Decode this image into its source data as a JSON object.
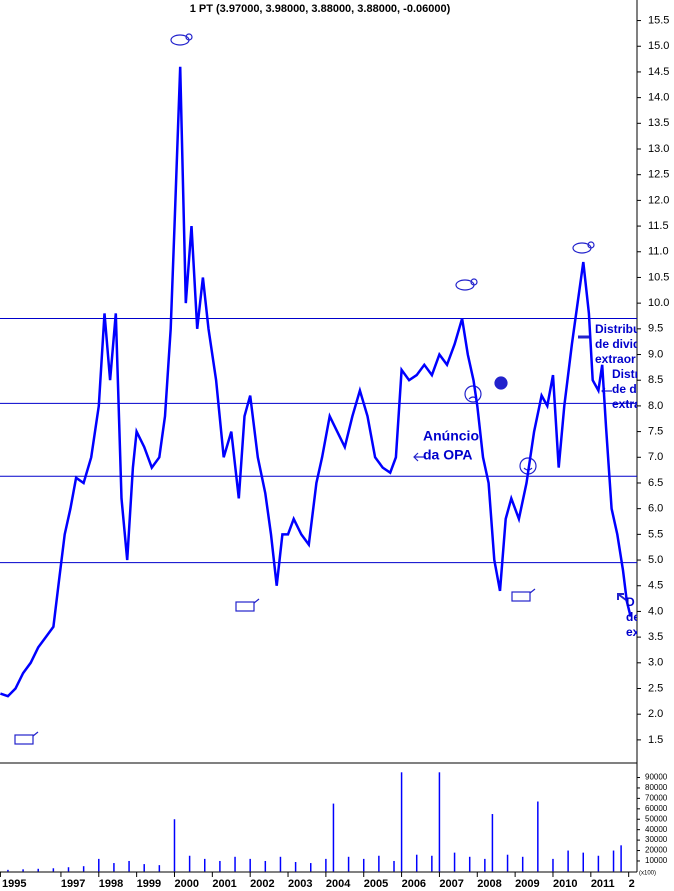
{
  "chart_data": {
    "type": "stock",
    "title": "1 PT (3.97000, 3.98000, 3.88000, 3.88000, -0.06000)",
    "color": "#0000ff",
    "xlim": [
      1995.39,
      2012.22
    ],
    "xticks": [
      {
        "value": 1995.4,
        "label": "1995"
      },
      1997,
      1998,
      1999,
      2000,
      2001,
      2002,
      2003,
      2004,
      2005,
      2006,
      2007,
      2008,
      2009,
      2010,
      2011,
      {
        "value": 2012,
        "label": "2"
      }
    ],
    "ylim": [
      1.05,
      15.9
    ],
    "yticks": [
      1.5,
      {
        "value": 2,
        "label": "2.0"
      },
      2.5,
      {
        "value": 3,
        "label": "3.0"
      },
      3.5,
      {
        "value": 4,
        "label": "4.0"
      },
      4.5,
      {
        "value": 5,
        "label": "5.0"
      },
      5.5,
      {
        "value": 6,
        "label": "6.0"
      },
      6.5,
      {
        "value": 7,
        "label": "7.0"
      },
      7.5,
      {
        "value": 8,
        "label": "8.0"
      },
      8.5,
      {
        "value": 9,
        "label": "9.0"
      },
      9.5,
      {
        "value": 10,
        "label": "10.0"
      },
      10.5,
      {
        "value": 11,
        "label": "11.0"
      },
      11.5,
      {
        "value": 12,
        "label": "12.0"
      },
      12.5,
      {
        "value": 13,
        "label": "13.0"
      },
      13.5,
      {
        "value": 14,
        "label": "14.0"
      },
      14.5,
      {
        "value": 15,
        "label": "15.0"
      },
      15.5
    ],
    "x": [
      1995.4,
      1995.6,
      1995.8,
      1996.0,
      1996.2,
      1996.4,
      1996.6,
      1996.8,
      1996.95,
      1997.1,
      1997.25,
      1997.4,
      1997.6,
      1997.8,
      1998.0,
      1998.15,
      1998.3,
      1998.45,
      1998.6,
      1998.75,
      1998.9,
      1999.0,
      1999.2,
      1999.4,
      1999.6,
      1999.75,
      1999.9,
      2000.0,
      2000.15,
      2000.3,
      2000.45,
      2000.6,
      2000.75,
      2000.9,
      2001.1,
      2001.3,
      2001.5,
      2001.7,
      2001.85,
      2002.0,
      2002.2,
      2002.4,
      2002.55,
      2002.7,
      2002.85,
      2003.0,
      2003.15,
      2003.35,
      2003.55,
      2003.75,
      2003.9,
      2004.1,
      2004.3,
      2004.5,
      2004.7,
      2004.9,
      2005.1,
      2005.3,
      2005.5,
      2005.7,
      2005.85,
      2006.0,
      2006.2,
      2006.4,
      2006.6,
      2006.8,
      2007.0,
      2007.2,
      2007.4,
      2007.6,
      2007.75,
      2007.9,
      2008.0,
      2008.15,
      2008.3,
      2008.45,
      2008.6,
      2008.75,
      2008.9,
      2009.1,
      2009.3,
      2009.5,
      2009.7,
      2009.85,
      2010.0,
      2010.15,
      2010.3,
      2010.5,
      2010.65,
      2010.8,
      2010.95,
      2011.05,
      2011.2,
      2011.3,
      2011.4,
      2011.55,
      2011.7,
      2011.85,
      2011.95,
      2012.05
    ],
    "values": [
      2.4,
      2.35,
      2.5,
      2.8,
      3.0,
      3.3,
      3.5,
      3.7,
      4.6,
      5.5,
      6.0,
      6.6,
      6.5,
      7.0,
      8.0,
      9.8,
      8.5,
      9.8,
      6.2,
      5.0,
      6.8,
      7.5,
      7.2,
      6.8,
      7.0,
      7.8,
      9.5,
      11.5,
      14.6,
      10.0,
      11.5,
      9.5,
      10.5,
      9.5,
      8.5,
      7.0,
      7.5,
      6.2,
      7.8,
      8.2,
      7.0,
      6.3,
      5.5,
      4.5,
      5.5,
      5.5,
      5.8,
      5.5,
      5.3,
      6.5,
      7.0,
      7.8,
      7.5,
      7.2,
      7.8,
      8.3,
      7.8,
      7.0,
      6.8,
      6.7,
      7.0,
      8.7,
      8.5,
      8.6,
      8.8,
      8.6,
      9.0,
      8.8,
      9.2,
      9.7,
      9.0,
      8.5,
      8.0,
      7.0,
      6.5,
      5.0,
      4.4,
      5.8,
      6.2,
      5.8,
      6.5,
      7.5,
      8.2,
      8.0,
      8.6,
      6.8,
      8.0,
      9.2,
      10.0,
      10.8,
      9.8,
      8.5,
      8.3,
      8.8,
      7.6,
      6.0,
      5.5,
      4.8,
      4.2,
      3.9
    ],
    "reference_lines": [
      9.7,
      8.05,
      6.63,
      4.95
    ],
    "annotations": [
      {
        "lines": [
          "Anúncio",
          "da OPA"
        ]
      },
      {
        "lines": [
          "Distribu",
          "de divid",
          "extraor"
        ]
      },
      {
        "lines": [
          "Distr",
          "de di",
          "extra"
        ]
      },
      {
        "lines": [
          "D",
          "de",
          "ex"
        ]
      }
    ],
    "volume": {
      "unit_label": "(x100)",
      "ylim": [
        0,
        102000
      ],
      "yticks": [
        10000,
        20000,
        30000,
        40000,
        50000,
        60000,
        70000,
        80000,
        90000
      ],
      "x": [
        1995.6,
        1996.0,
        1996.4,
        1996.8,
        1997.2,
        1997.6,
        1998.0,
        1998.4,
        1998.8,
        1999.2,
        1999.6,
        2000.0,
        2000.4,
        2000.8,
        2001.2,
        2001.6,
        2002.0,
        2002.4,
        2002.8,
        2003.2,
        2003.6,
        2004.0,
        2004.2,
        2004.6,
        2005.0,
        2005.4,
        2005.8,
        2006.0,
        2006.4,
        2006.8,
        2007.0,
        2007.4,
        2007.8,
        2008.2,
        2008.4,
        2008.8,
        2009.2,
        2009.6,
        2010.0,
        2010.4,
        2010.8,
        2011.2,
        2011.6,
        2011.8
      ],
      "values": [
        1500,
        2000,
        2500,
        3000,
        4000,
        5000,
        12000,
        8000,
        10000,
        7000,
        6000,
        50000,
        15000,
        12000,
        10000,
        14000,
        12000,
        10000,
        14000,
        9000,
        8000,
        12000,
        65000,
        14000,
        12000,
        15000,
        10000,
        95000,
        16000,
        15000,
        95000,
        18000,
        14000,
        12000,
        55000,
        16000,
        14000,
        67000,
        12000,
        20000,
        18000,
        15000,
        20000,
        25000
      ]
    }
  }
}
